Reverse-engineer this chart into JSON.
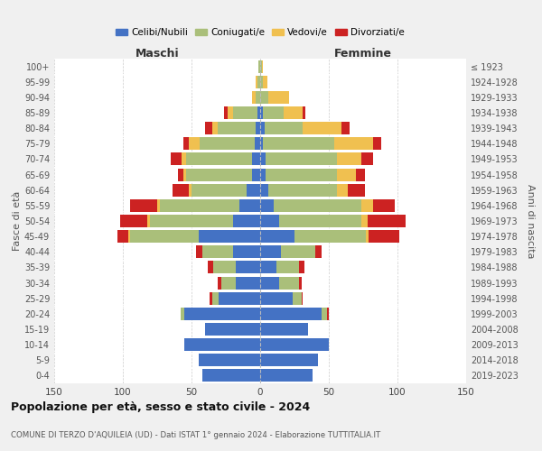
{
  "age_groups": [
    "0-4",
    "5-9",
    "10-14",
    "15-19",
    "20-24",
    "25-29",
    "30-34",
    "35-39",
    "40-44",
    "45-49",
    "50-54",
    "55-59",
    "60-64",
    "65-69",
    "70-74",
    "75-79",
    "80-84",
    "85-89",
    "90-94",
    "95-99",
    "100+"
  ],
  "birth_years": [
    "2019-2023",
    "2014-2018",
    "2009-2013",
    "2004-2008",
    "1999-2003",
    "1994-1998",
    "1989-1993",
    "1984-1988",
    "1979-1983",
    "1974-1978",
    "1969-1973",
    "1964-1968",
    "1959-1963",
    "1954-1958",
    "1949-1953",
    "1944-1948",
    "1939-1943",
    "1934-1938",
    "1929-1933",
    "1924-1928",
    "≤ 1923"
  ],
  "maschi": {
    "celibi": [
      42,
      45,
      55,
      40,
      55,
      30,
      18,
      18,
      20,
      45,
      20,
      15,
      10,
      6,
      6,
      4,
      3,
      2,
      0,
      0,
      0
    ],
    "coniugati": [
      0,
      0,
      0,
      0,
      3,
      5,
      10,
      16,
      22,
      50,
      60,
      58,
      40,
      48,
      48,
      40,
      28,
      18,
      3,
      2,
      1
    ],
    "vedovi": [
      0,
      0,
      0,
      0,
      0,
      0,
      0,
      0,
      0,
      1,
      2,
      2,
      2,
      2,
      3,
      8,
      4,
      4,
      3,
      1,
      0
    ],
    "divorziati": [
      0,
      0,
      0,
      0,
      0,
      2,
      3,
      4,
      5,
      8,
      20,
      20,
      12,
      4,
      8,
      4,
      5,
      2,
      0,
      0,
      0
    ]
  },
  "femmine": {
    "nubili": [
      38,
      42,
      50,
      35,
      45,
      24,
      14,
      12,
      15,
      25,
      14,
      10,
      6,
      4,
      4,
      2,
      3,
      2,
      0,
      0,
      0
    ],
    "coniugate": [
      0,
      0,
      0,
      0,
      4,
      6,
      14,
      16,
      25,
      52,
      60,
      64,
      50,
      52,
      52,
      52,
      28,
      15,
      6,
      2,
      1
    ],
    "vedove": [
      0,
      0,
      0,
      0,
      0,
      0,
      0,
      0,
      0,
      2,
      4,
      8,
      8,
      14,
      18,
      28,
      28,
      14,
      15,
      3,
      1
    ],
    "divorziate": [
      0,
      0,
      0,
      0,
      1,
      1,
      2,
      4,
      5,
      22,
      28,
      16,
      12,
      6,
      8,
      6,
      6,
      2,
      0,
      0,
      0
    ]
  },
  "colors": {
    "celibi": "#4472C4",
    "coniugati": "#AABF7A",
    "vedovi": "#F0C050",
    "divorziati": "#CC2222"
  },
  "xlabel_left": "Maschi",
  "xlabel_right": "Femmine",
  "ylabel_left": "Fasce di età",
  "ylabel_right": "Anni di nascita",
  "title": "Popolazione per età, sesso e stato civile - 2024",
  "subtitle": "COMUNE DI TERZO D'AQUILEIA (UD) - Dati ISTAT 1° gennaio 2024 - Elaborazione TUTTITALIA.IT",
  "xlim": 150,
  "bg_color": "#f0f0f0",
  "plot_bg": "#ffffff",
  "grid_color": "#cccccc"
}
